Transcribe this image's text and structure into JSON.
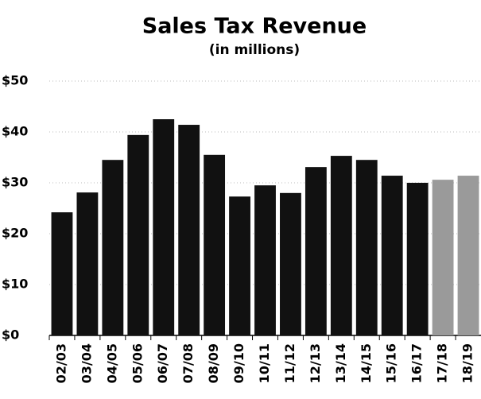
{
  "chart_data": {
    "type": "bar",
    "title": "Sales Tax Revenue",
    "subtitle": "(in millions)",
    "categories": [
      "02/03",
      "03/04",
      "04/05",
      "05/06",
      "06/07",
      "07/08",
      "08/09",
      "09/10",
      "10/11",
      "11/12",
      "12/13",
      "13/14",
      "14/15",
      "15/16",
      "16/17",
      "17/18",
      "18/19"
    ],
    "values": [
      24.2,
      28.1,
      34.5,
      39.4,
      42.5,
      41.4,
      35.5,
      27.3,
      29.5,
      28,
      33.1,
      35.3,
      34.5,
      31.4,
      30,
      30.6,
      31.4
    ],
    "colors": [
      "#111111",
      "#111111",
      "#111111",
      "#111111",
      "#111111",
      "#111111",
      "#111111",
      "#111111",
      "#111111",
      "#111111",
      "#111111",
      "#111111",
      "#111111",
      "#111111",
      "#111111",
      "#9a9a9a",
      "#9a9a9a"
    ],
    "ylim": [
      0,
      50
    ],
    "yticks": [
      {
        "value": 0,
        "label": "$0"
      },
      {
        "value": 10,
        "label": "$10"
      },
      {
        "value": 20,
        "label": "$20"
      },
      {
        "value": 30,
        "label": "$30"
      },
      {
        "value": 40,
        "label": "$40"
      },
      {
        "value": 50,
        "label": "$50"
      }
    ],
    "grid": true
  }
}
